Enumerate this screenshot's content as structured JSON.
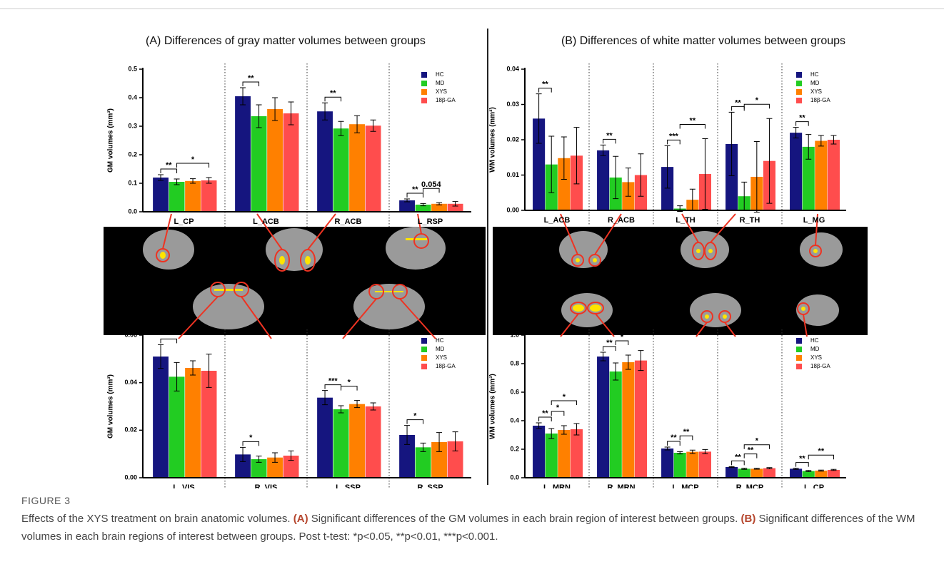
{
  "chart_data": [
    {
      "type": "bar",
      "title": "(A) Differences of gray matter volumes between groups",
      "ylabel": "GM volumes (mm³)",
      "categories": [
        "L_CP",
        "L_ACB",
        "R_ACB",
        "L_RSP"
      ],
      "series": [
        {
          "name": "HC",
          "color": "#15157f",
          "values": [
            0.12,
            0.405,
            0.352,
            0.04
          ],
          "errors": [
            0.01,
            0.03,
            0.03,
            0.005
          ]
        },
        {
          "name": "MD",
          "color": "#22cc22",
          "values": [
            0.105,
            0.335,
            0.292,
            0.025
          ],
          "errors": [
            0.01,
            0.04,
            0.025,
            0.004
          ]
        },
        {
          "name": "XYS",
          "color": "#ff8000",
          "values": [
            0.108,
            0.36,
            0.307,
            0.028
          ],
          "errors": [
            0.008,
            0.04,
            0.03,
            0.004
          ]
        },
        {
          "name": "18β-GA",
          "color": "#ff4d4d",
          "values": [
            0.11,
            0.345,
            0.302,
            0.028
          ],
          "errors": [
            0.01,
            0.04,
            0.02,
            0.008
          ]
        }
      ],
      "ylim": [
        0,
        0.5
      ],
      "yticks": [
        {
          "value": 0,
          "label": "0.0"
        },
        0.1,
        0.2,
        0.3,
        0.4,
        0.5
      ],
      "legend": "upper right",
      "annotations": [
        {
          "text": "**",
          "category": 0,
          "from": 0,
          "to": 1
        },
        {
          "text": "*",
          "category": 0,
          "from": 1,
          "to": 3
        },
        {
          "text": "**",
          "category": 1,
          "from": 0,
          "to": 1
        },
        {
          "text": "**",
          "category": 2,
          "from": 0,
          "to": 1
        },
        {
          "text": "**",
          "category": 3,
          "from": 0,
          "to": 1
        },
        {
          "text": "0.054",
          "category": 3,
          "from": 1,
          "to": 2
        }
      ]
    },
    {
      "type": "bar",
      "ylabel": "GM volumes (mm³)",
      "categories": [
        "L_VIS",
        "R_VIS",
        "L_SSP",
        "R_SSP"
      ],
      "series": [
        {
          "name": "HC",
          "color": "#15157f",
          "values": [
            0.051,
            0.0098,
            0.0337,
            0.018
          ],
          "errors": [
            0.005,
            0.003,
            0.003,
            0.004
          ]
        },
        {
          "name": "MD",
          "color": "#22cc22",
          "values": [
            0.0425,
            0.0078,
            0.0288,
            0.0128
          ],
          "errors": [
            0.006,
            0.0013,
            0.0015,
            0.0018
          ]
        },
        {
          "name": "XYS",
          "color": "#ff8000",
          "values": [
            0.0462,
            0.0085,
            0.031,
            0.015
          ],
          "errors": [
            0.003,
            0.002,
            0.0015,
            0.004
          ]
        },
        {
          "name": "18β-GA",
          "color": "#ff4d4d",
          "values": [
            0.045,
            0.0093,
            0.03,
            0.0153
          ],
          "errors": [
            0.007,
            0.002,
            0.0015,
            0.004
          ]
        }
      ],
      "ylim": [
        0,
        0.06
      ],
      "yticks": [
        {
          "value": 0,
          "label": "0.00"
        },
        {
          "value": 0.02,
          "label": "0.02"
        },
        {
          "value": 0.04,
          "label": "0.04"
        },
        {
          "value": 0.06,
          "label": "0.06"
        }
      ],
      "legend": "upper right",
      "annotations": [
        {
          "text": "**",
          "category": 0,
          "from": 0,
          "to": 1
        },
        {
          "text": "*",
          "category": 1,
          "from": 0,
          "to": 1
        },
        {
          "text": "***",
          "category": 2,
          "from": 0,
          "to": 1
        },
        {
          "text": "*",
          "category": 2,
          "from": 1,
          "to": 2
        },
        {
          "text": "*",
          "category": 3,
          "from": 0,
          "to": 1
        }
      ]
    },
    {
      "type": "bar",
      "title": "(B) Differences of white matter volumes between groups",
      "ylabel": "WM volumes (mm³)",
      "categories": [
        "L_ACB",
        "R_ACB",
        "L_TH",
        "R_TH",
        "L_MG"
      ],
      "series": [
        {
          "name": "HC",
          "color": "#15157f",
          "values": [
            0.026,
            0.017,
            0.0123,
            0.0188,
            0.022
          ],
          "errors": [
            0.007,
            0.0015,
            0.006,
            0.009,
            0.0015
          ]
        },
        {
          "name": "MD",
          "color": "#22cc22",
          "values": [
            0.013,
            0.0093,
            0.0005,
            0.004,
            0.018
          ],
          "errors": [
            0.008,
            0.006,
            0.0008,
            0.004,
            0.0035
          ]
        },
        {
          "name": "XYS",
          "color": "#ff8000",
          "values": [
            0.0148,
            0.008,
            0.003,
            0.0095,
            0.0197
          ],
          "errors": [
            0.006,
            0.004,
            0.003,
            0.01,
            0.0015
          ]
        },
        {
          "name": "18β-GA",
          "color": "#ff4d4d",
          "values": [
            0.0155,
            0.01,
            0.0103,
            0.014,
            0.02
          ],
          "errors": [
            0.008,
            0.006,
            0.01,
            0.012,
            0.0012
          ]
        }
      ],
      "ylim": [
        0,
        0.04
      ],
      "yticks": [
        {
          "value": 0,
          "label": "0.00"
        },
        {
          "value": 0.01,
          "label": "0.01"
        },
        {
          "value": 0.02,
          "label": "0.02"
        },
        {
          "value": 0.03,
          "label": "0.03"
        },
        {
          "value": 0.04,
          "label": "0.04"
        }
      ],
      "legend": "upper right",
      "annotations": [
        {
          "text": "**",
          "category": 0,
          "from": 0,
          "to": 1
        },
        {
          "text": "**",
          "category": 1,
          "from": 0,
          "to": 1
        },
        {
          "text": "***",
          "category": 2,
          "from": 0,
          "to": 1
        },
        {
          "text": "**",
          "category": 2,
          "from": 1,
          "to": 3
        },
        {
          "text": "**",
          "category": 3,
          "from": 0,
          "to": 1
        },
        {
          "text": "*",
          "category": 3,
          "from": 1,
          "to": 3
        },
        {
          "text": "**",
          "category": 4,
          "from": 0,
          "to": 1
        }
      ]
    },
    {
      "type": "bar",
      "ylabel": "WM volumes (mm³)",
      "categories": [
        "L_MRN",
        "R_MRN",
        "L_MCP",
        "R_MCP",
        "L_CP"
      ],
      "series": [
        {
          "name": "HC",
          "color": "#15157f",
          "values": [
            0.365,
            0.85,
            0.205,
            0.075,
            0.063
          ],
          "errors": [
            0.02,
            0.03,
            0.01,
            0.003,
            0.004
          ]
        },
        {
          "name": "MD",
          "color": "#22cc22",
          "values": [
            0.31,
            0.745,
            0.175,
            0.063,
            0.047
          ],
          "errors": [
            0.035,
            0.06,
            0.008,
            0.004,
            0.004
          ]
        },
        {
          "name": "XYS",
          "color": "#ff8000",
          "values": [
            0.335,
            0.81,
            0.182,
            0.063,
            0.05
          ],
          "errors": [
            0.03,
            0.05,
            0.012,
            0.003,
            0.004
          ]
        },
        {
          "name": "18β-GA",
          "color": "#ff4d4d",
          "values": [
            0.34,
            0.822,
            0.183,
            0.067,
            0.055
          ],
          "errors": [
            0.04,
            0.07,
            0.015,
            0.004,
            0.004
          ]
        }
      ],
      "ylim": [
        0,
        1
      ],
      "yticks": [
        {
          "value": 0,
          "label": "0.0"
        },
        0.2,
        0.4,
        0.6,
        0.8,
        {
          "value": 1,
          "label": "1.0"
        }
      ],
      "legend": "upper right",
      "annotations": [
        {
          "text": "**",
          "category": 0,
          "from": 0,
          "to": 1
        },
        {
          "text": "*",
          "category": 0,
          "from": 1,
          "to": 2
        },
        {
          "text": "*",
          "category": 0,
          "from": 1,
          "to": 3
        },
        {
          "text": "**",
          "category": 1,
          "from": 0,
          "to": 1
        },
        {
          "text": "*",
          "category": 1,
          "from": 1,
          "to": 2
        },
        {
          "text": "*",
          "category": 1,
          "from": 1,
          "to": 3
        },
        {
          "text": "**",
          "category": 2,
          "from": 0,
          "to": 1
        },
        {
          "text": "**",
          "category": 2,
          "from": 1,
          "to": 2
        },
        {
          "text": "**",
          "category": 3,
          "from": 0,
          "to": 1
        },
        {
          "text": "**",
          "category": 3,
          "from": 1,
          "to": 2
        },
        {
          "text": "*",
          "category": 3,
          "from": 1,
          "to": 3
        },
        {
          "text": "**",
          "category": 4,
          "from": 0,
          "to": 1
        },
        {
          "text": "**",
          "category": 4,
          "from": 1,
          "to": 3
        }
      ]
    }
  ],
  "caption": {
    "label": "FIGURE 3",
    "intro": "Effects of the XYS treatment on brain anatomic volumes.",
    "a_label": "(A)",
    "a_text": "Significant differences of the GM volumes in each brain region of interest between groups.",
    "b_label": "(B)",
    "b_text": "Significant differences of the WM volumes in each brain regions of interest between groups. Post t-test: *p<0.05, **p<0.01, ***p<0.001."
  }
}
